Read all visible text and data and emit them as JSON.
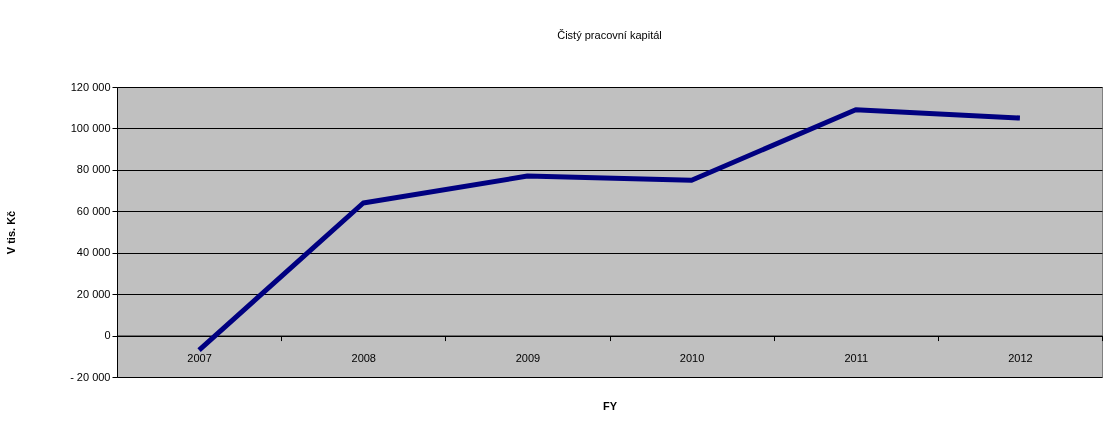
{
  "chart_data": {
    "type": "line",
    "title": "Čistý pracovní kapitál",
    "xlabel": "FY",
    "ylabel": "V tis. Kč",
    "categories": [
      "2007",
      "2008",
      "2009",
      "2010",
      "2011",
      "2012"
    ],
    "series": [
      {
        "color": "#000080",
        "values": [
          -7000,
          64000,
          77000,
          75000,
          109000,
          105000
        ]
      }
    ],
    "ylim": [
      -20000,
      120000
    ],
    "yticks": [
      {
        "value": -20000,
        "label": "-  20 000"
      },
      {
        "value": 0,
        "label": "0"
      },
      {
        "value": 20000,
        "label": "20 000"
      },
      {
        "value": 40000,
        "label": "40 000"
      },
      {
        "value": 60000,
        "label": "60 000"
      },
      {
        "value": 80000,
        "label": "80 000"
      },
      {
        "value": 100000,
        "label": "100 000"
      },
      {
        "value": 120000,
        "label": "120 000"
      }
    ],
    "grid": "y",
    "marker": "none",
    "line_style": "solid"
  }
}
